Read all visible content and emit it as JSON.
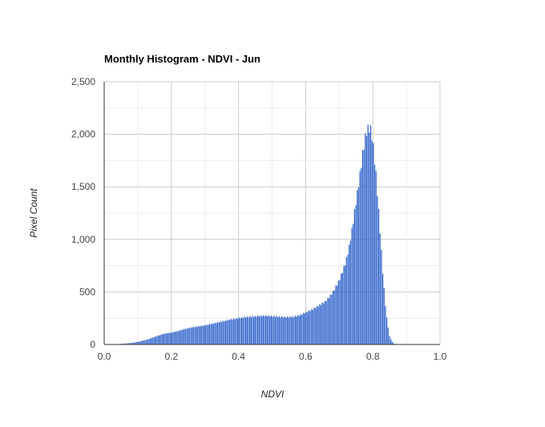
{
  "chart_data": {
    "type": "bar",
    "title": "Monthly Histogram - NDVI - Jun",
    "xlabel": "NDVI",
    "ylabel": "Pixel Count",
    "xlim": [
      0,
      1
    ],
    "ylim": [
      0,
      2500
    ],
    "x_ticks": [
      "0.0",
      "0.2",
      "0.4",
      "0.6",
      "0.8",
      "1.0"
    ],
    "y_ticks": [
      "0",
      "500",
      "1,000",
      "1,500",
      "2,000",
      "2,500"
    ],
    "grid": true,
    "bar_color": "#3366cc",
    "bin_width": 0.004,
    "x": [
      0.02,
      0.04,
      0.06,
      0.08,
      0.1,
      0.12,
      0.14,
      0.16,
      0.18,
      0.2,
      0.22,
      0.24,
      0.26,
      0.28,
      0.3,
      0.32,
      0.34,
      0.36,
      0.38,
      0.4,
      0.42,
      0.44,
      0.46,
      0.48,
      0.5,
      0.52,
      0.54,
      0.56,
      0.58,
      0.6,
      0.62,
      0.64,
      0.66,
      0.68,
      0.7,
      0.72,
      0.73,
      0.74,
      0.75,
      0.76,
      0.77,
      0.78,
      0.785,
      0.79,
      0.795,
      0.8,
      0.81,
      0.82,
      0.83,
      0.84,
      0.85,
      0.86,
      0.87,
      0.88
    ],
    "values": [
      0,
      3,
      8,
      14,
      25,
      40,
      60,
      85,
      105,
      115,
      130,
      150,
      165,
      175,
      185,
      200,
      215,
      230,
      245,
      255,
      265,
      270,
      275,
      278,
      275,
      270,
      265,
      268,
      280,
      310,
      340,
      380,
      420,
      500,
      620,
      800,
      950,
      1150,
      1380,
      1600,
      1850,
      2050,
      2090,
      2100,
      2080,
      1980,
      1650,
      1200,
      700,
      300,
      80,
      15,
      0,
      0
    ]
  }
}
